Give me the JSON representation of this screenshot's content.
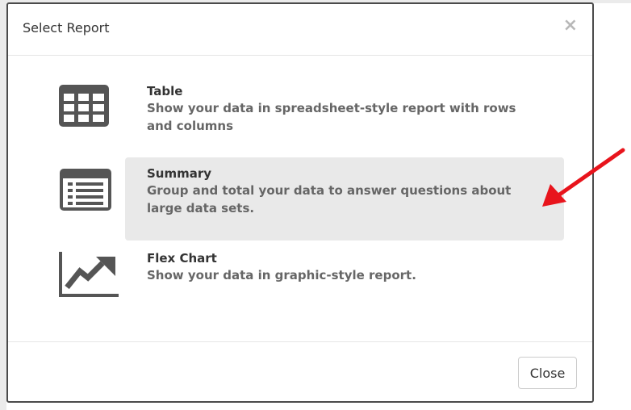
{
  "dialog": {
    "title": "Select Report",
    "close_glyph": "×"
  },
  "options": [
    {
      "title": "Table",
      "description": "Show your data in spreadsheet-style report with rows and columns",
      "icon": "table-grid-icon",
      "selected": false
    },
    {
      "title": "Summary",
      "description": "Group and total your data to answer questions about large data sets.",
      "icon": "summary-list-icon",
      "selected": true
    },
    {
      "title": "Flex Chart",
      "description": "Show your data in graphic-style report.",
      "icon": "line-chart-icon",
      "selected": false
    }
  ],
  "footer": {
    "close_label": "Close"
  },
  "colors": {
    "icon": "#555555",
    "selected_bg": "#e9e9e9",
    "annotation_arrow": "#e8141c"
  }
}
